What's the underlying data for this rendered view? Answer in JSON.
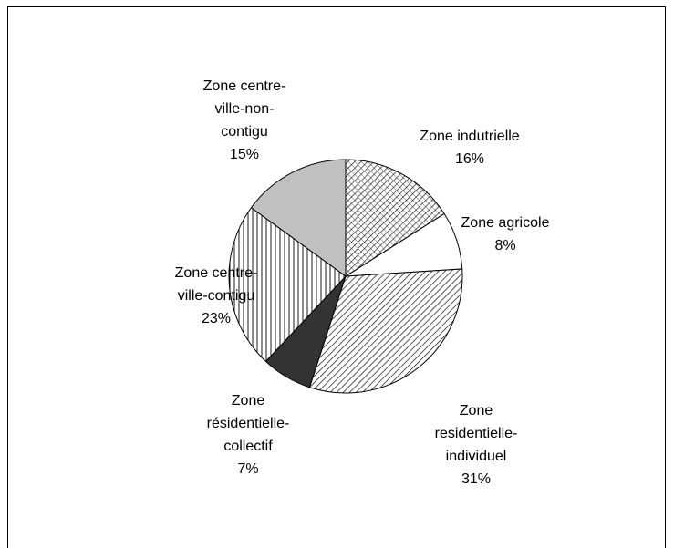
{
  "chart_data": {
    "type": "pie",
    "categories": [
      "Zone indutrielle",
      "Zone agricole",
      "Zone residentielle-individuel",
      "Zone résidentielle-collectif",
      "Zone centre-ville-contigu",
      "Zone centre-ville-non-contigu"
    ],
    "values": [
      16,
      8,
      31,
      7,
      23,
      15
    ],
    "value_labels": [
      "16%",
      "8%",
      "31%",
      "7%",
      "23%",
      "15%"
    ],
    "colors": [
      "#ffffff",
      "#ffffff",
      "#ffffff",
      "#333333",
      "#ffffff",
      "#c0c0c0"
    ],
    "patterns": [
      "crosshatch",
      "none",
      "diagonal",
      "none",
      "vertical",
      "none"
    ]
  }
}
